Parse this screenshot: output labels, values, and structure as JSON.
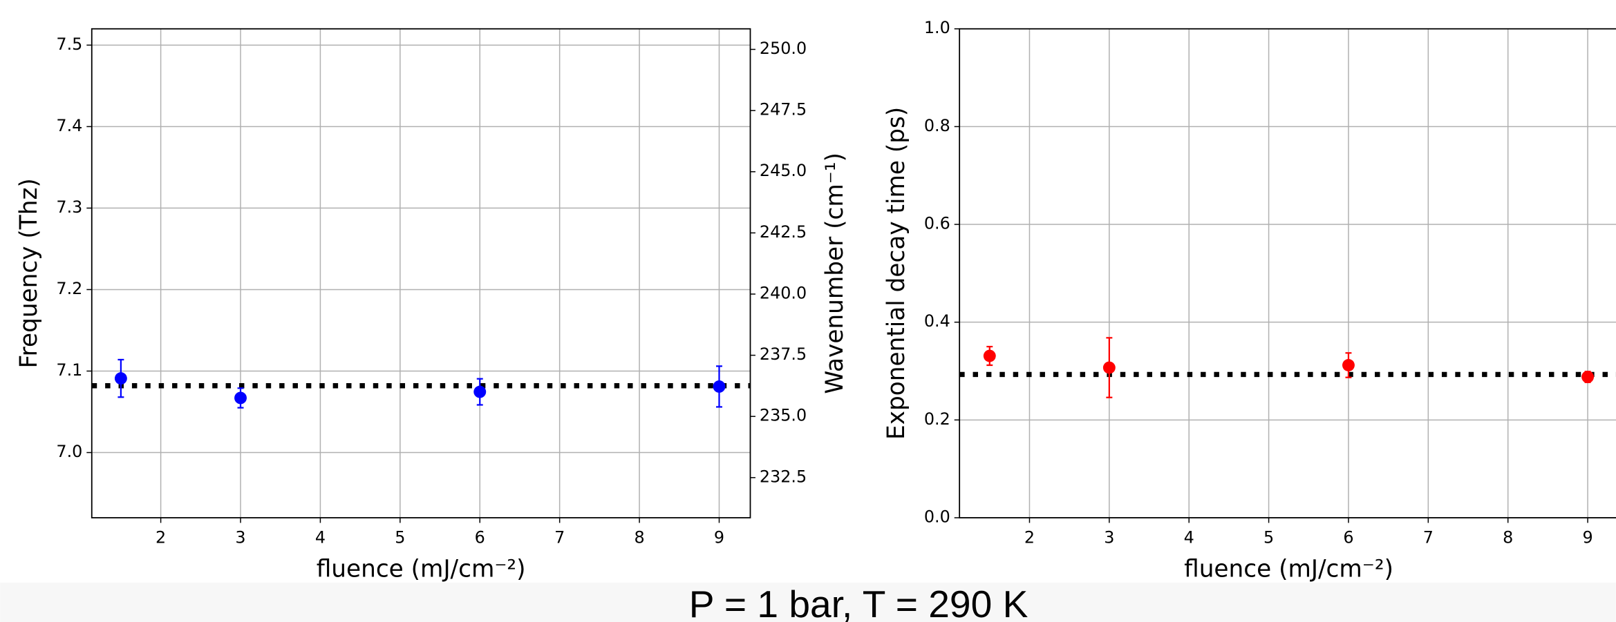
{
  "title": "P = 1 bar, T = 290 K",
  "chart_data": [
    {
      "type": "errorbar",
      "xlabel": "fluence (mJ/cm⁻²)",
      "ylabel": "Frequency (Thz)",
      "y2label": "Wavenumber (cm⁻¹)",
      "x": [
        1.5,
        3,
        6,
        9
      ],
      "values": [
        7.091,
        7.067,
        7.0745,
        7.081
      ],
      "errors": [
        0.023,
        0.012,
        0.016,
        0.025
      ],
      "color": "#0000ff",
      "hline": 7.082,
      "hline_color": "#000000",
      "xlim": [
        1.135,
        9.39
      ],
      "xticks": [
        2,
        3,
        4,
        5,
        6,
        7,
        8,
        9
      ],
      "ylim": [
        6.92,
        7.52
      ],
      "yticks": [
        {
          "value": 7,
          "label": "7.0"
        },
        7.1,
        7.2,
        7.3,
        7.4,
        7.5
      ],
      "y2lim": [
        230.86,
        250.84
      ],
      "y2ticks": [
        {
          "value": 232.5,
          "label": "232.5"
        },
        {
          "value": 235,
          "label": "235.0"
        },
        {
          "value": 237.5,
          "label": "237.5"
        },
        {
          "value": 240,
          "label": "240.0"
        },
        {
          "value": 242.5,
          "label": "242.5"
        },
        {
          "value": 245,
          "label": "245.0"
        },
        {
          "value": 247.5,
          "label": "247.5"
        },
        {
          "value": 250,
          "label": "250.0"
        }
      ],
      "grid": true
    },
    {
      "type": "errorbar",
      "xlabel": "fluence (mJ/cm⁻²)",
      "ylabel": "Exponential decay time (ps)",
      "x": [
        1.5,
        3,
        6,
        9
      ],
      "values": [
        0.331,
        0.307,
        0.312,
        0.288
      ],
      "errors": [
        0.019,
        0.061,
        0.025,
        0.011
      ],
      "color": "#ff0000",
      "hline": 0.293,
      "hline_color": "#000000",
      "xlim": [
        1.122,
        9.38
      ],
      "xticks": [
        2,
        3,
        4,
        5,
        6,
        7,
        8,
        9
      ],
      "ylim": [
        0,
        1
      ],
      "yticks": [
        {
          "value": 0,
          "label": "0.0"
        },
        0.2,
        0.4,
        0.6,
        0.8,
        {
          "value": 1,
          "label": "1.0"
        }
      ],
      "grid": true
    }
  ]
}
